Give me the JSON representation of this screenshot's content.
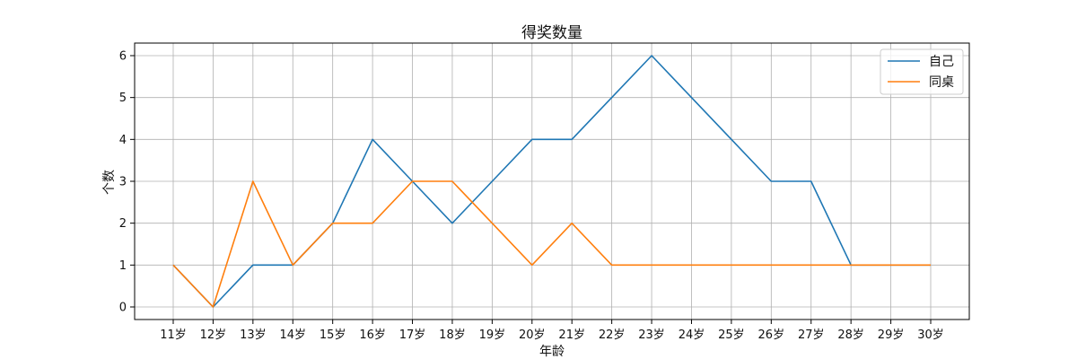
{
  "chart_data": {
    "type": "line",
    "title": "得奖数量",
    "xlabel": "年龄",
    "ylabel": "个数",
    "categories": [
      "11岁",
      "12岁",
      "13岁",
      "14岁",
      "15岁",
      "16岁",
      "17岁",
      "18岁",
      "19岁",
      "20岁",
      "21岁",
      "22岁",
      "23岁",
      "24岁",
      "25岁",
      "26岁",
      "27岁",
      "28岁",
      "29岁",
      "30岁"
    ],
    "series": [
      {
        "name": "自己",
        "color": "#1f77b4",
        "values": [
          1,
          0,
          1,
          1,
          2,
          4,
          3,
          2,
          3,
          4,
          4,
          5,
          6,
          5,
          4,
          3,
          3,
          1,
          1,
          1
        ]
      },
      {
        "name": "同桌",
        "color": "#ff7f0e",
        "values": [
          1,
          0,
          3,
          1,
          2,
          2,
          3,
          3,
          2,
          1,
          2,
          1,
          1,
          1,
          1,
          1,
          1,
          1,
          1,
          1
        ]
      }
    ],
    "ylim": [
      -0.3,
      6.3
    ],
    "yticks": [
      0,
      1,
      2,
      3,
      4,
      5,
      6
    ],
    "grid": true,
    "legend_position": "top-right"
  }
}
